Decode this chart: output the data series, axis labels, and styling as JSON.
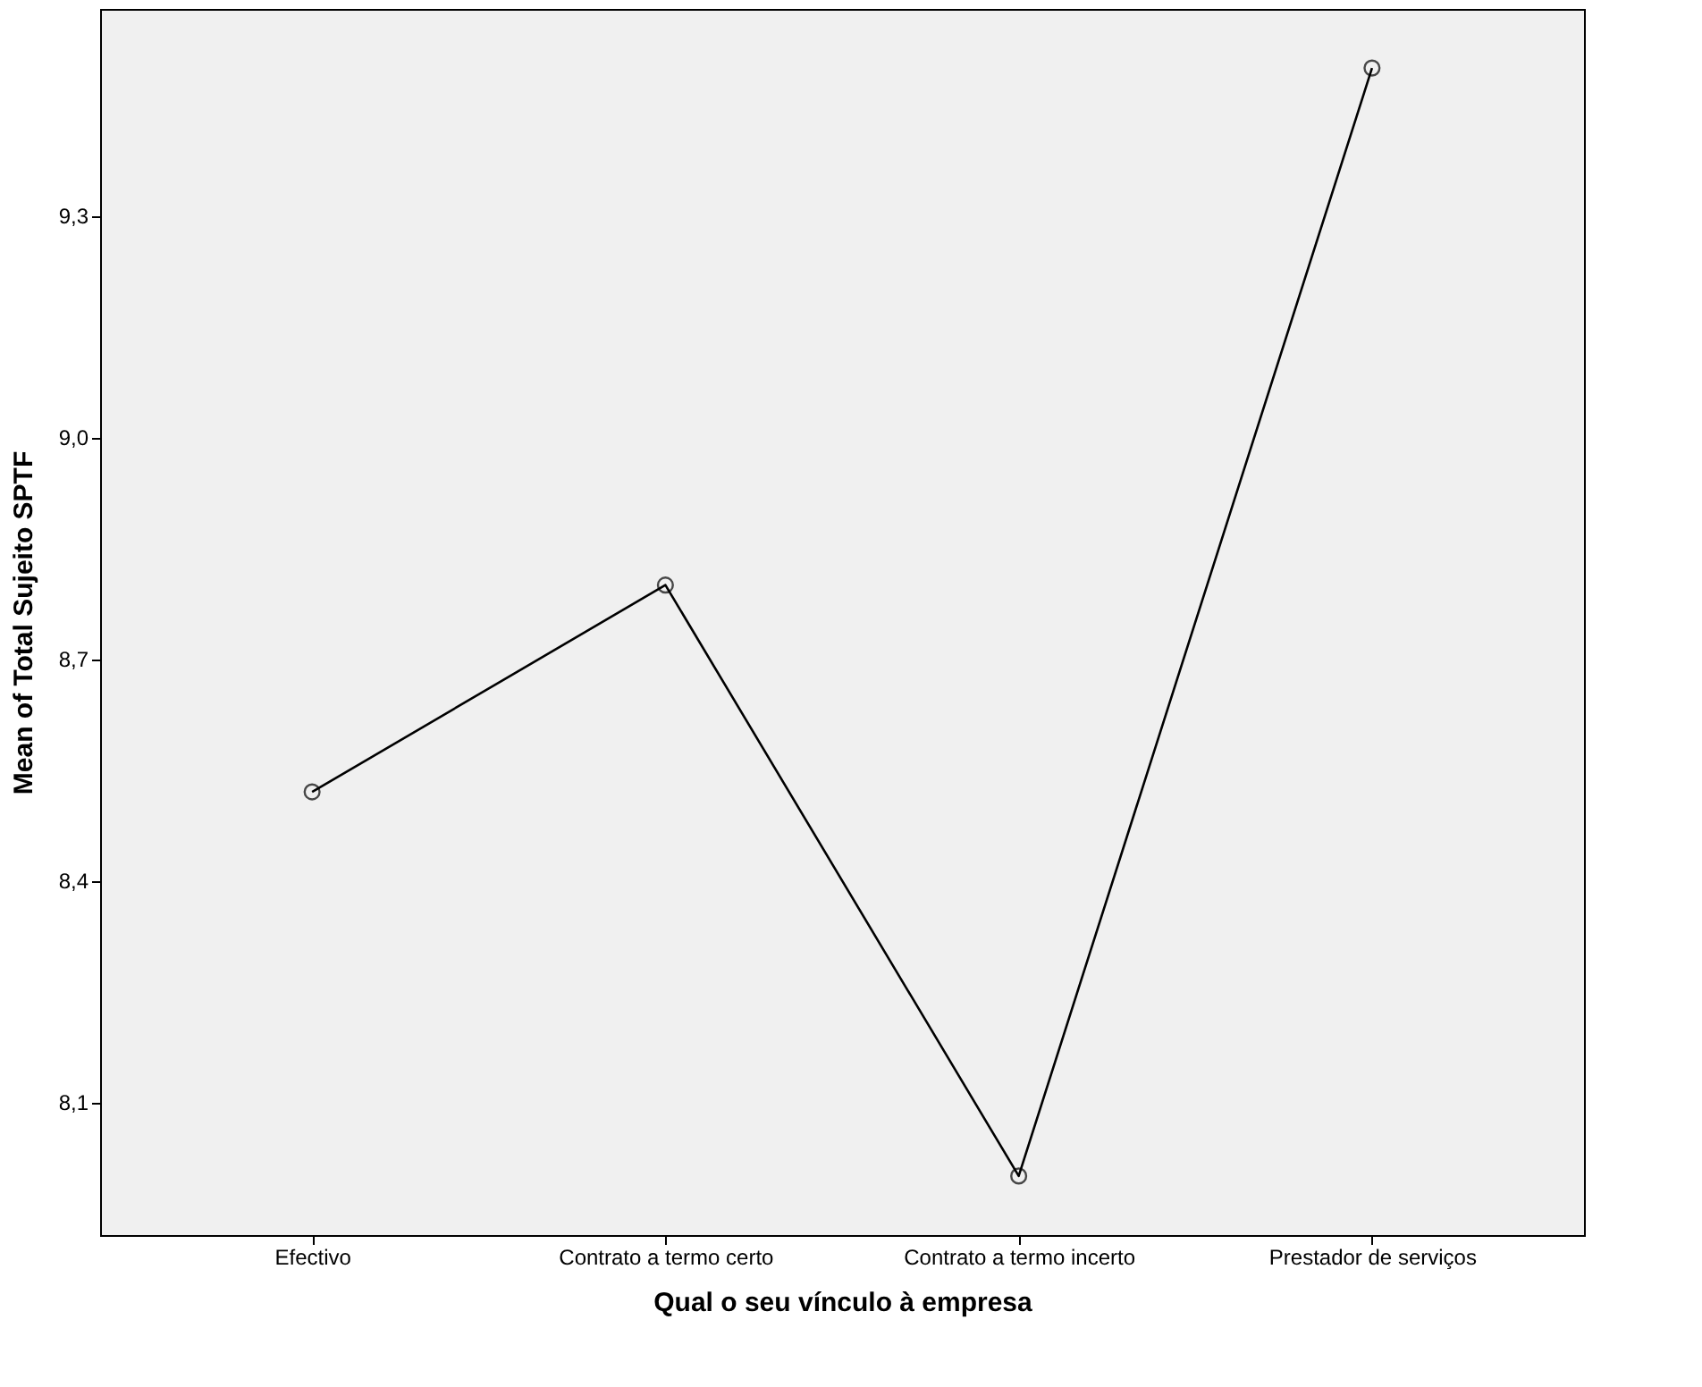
{
  "chart_data": {
    "type": "line",
    "xlabel": "Qual o seu vínculo à empresa",
    "ylabel": "Mean of Total Sujeito SPTF",
    "categories": [
      "Efectivo",
      "Contrato a termo certo",
      "Contrato a termo incerto",
      "Prestador de serviços"
    ],
    "series": [
      {
        "color": "#000000",
        "values": [
          8.52,
          8.8,
          8.0,
          9.5
        ]
      }
    ],
    "ylim": [
      7.92,
      9.58
    ],
    "yticks": [
      {
        "value": 8.1,
        "label": "8,1"
      },
      {
        "value": 8.4,
        "label": "8,4"
      },
      {
        "value": 8.7,
        "label": "8,7"
      },
      {
        "value": 9.0,
        "label": "9,0"
      },
      {
        "value": 9.3,
        "label": "9,3"
      }
    ],
    "marker": "circle",
    "grid": false
  }
}
